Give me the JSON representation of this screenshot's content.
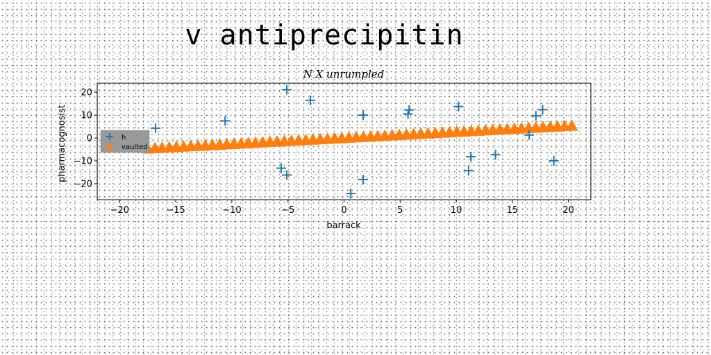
{
  "figure": {
    "title": "v antiprecipitin"
  },
  "chart_data": {
    "type": "scatter",
    "title": "N X unrumpled",
    "xlabel": "barrack",
    "ylabel": "pharmacognosist",
    "xlim": [
      -22,
      22
    ],
    "ylim": [
      -27,
      24
    ],
    "xticks": [
      -20,
      -15,
      -10,
      -5,
      0,
      5,
      10,
      15,
      20
    ],
    "yticks": [
      -20,
      -10,
      0,
      10,
      20
    ],
    "grid": false,
    "legend_position": "center-left",
    "series": [
      {
        "name": "h",
        "marker": "plus",
        "color": "#1f77b4",
        "points": [
          [
            -16.8,
            4.3
          ],
          [
            -10.6,
            7.5
          ],
          [
            -5.1,
            21.2
          ],
          [
            -3.0,
            16.5
          ],
          [
            -5.6,
            -13.2
          ],
          [
            -5.1,
            -16.2
          ],
          [
            0.6,
            -24.3
          ],
          [
            1.7,
            10.0
          ],
          [
            1.7,
            -18.2
          ],
          [
            5.7,
            10.5
          ],
          [
            5.8,
            12.3
          ],
          [
            10.2,
            13.8
          ],
          [
            11.3,
            -8.2
          ],
          [
            11.1,
            -14.3
          ],
          [
            13.5,
            -7.3
          ],
          [
            16.5,
            1.3
          ],
          [
            17.1,
            9.7
          ],
          [
            17.7,
            12.4
          ],
          [
            18.7,
            -10.0
          ]
        ]
      },
      {
        "name": "vaulted",
        "marker": "triangle",
        "color": "#ff7f0e",
        "x_start": -17.5,
        "x_end": 20.3,
        "count": 60,
        "y_start": -4.5,
        "y_end": 5.5
      }
    ]
  }
}
